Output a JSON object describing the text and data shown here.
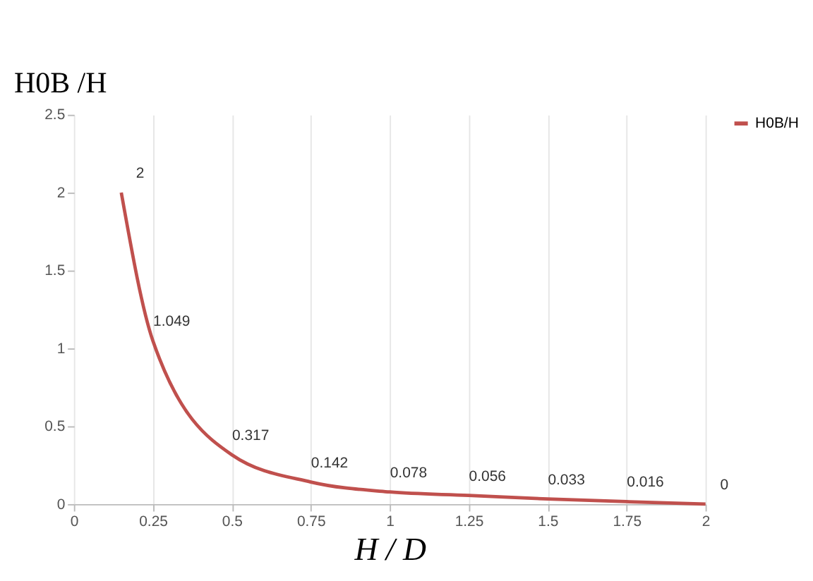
{
  "chart_data": {
    "type": "line",
    "xlabel": "H / D",
    "ylabel": "H0B /H",
    "x": [
      0.15,
      0.25,
      0.5,
      0.75,
      1,
      1.25,
      1.5,
      1.75,
      2
    ],
    "series": [
      {
        "name": "H0B/H",
        "color": "#c0504d",
        "values": [
          2,
          1.049,
          0.317,
          0.142,
          0.078,
          0.056,
          0.033,
          0.016,
          0
        ]
      }
    ],
    "data_labels": true,
    "xlim": [
      0,
      2
    ],
    "xticks": [
      0,
      0.25,
      0.5,
      0.75,
      1,
      1.25,
      1.5,
      1.75,
      2
    ],
    "ylim": [
      0,
      2.5
    ],
    "yticks": [
      0,
      0.5,
      1,
      1.5,
      2,
      2.5
    ],
    "grid": "x",
    "legend": "right",
    "marker": "none",
    "line_style": "solid"
  }
}
